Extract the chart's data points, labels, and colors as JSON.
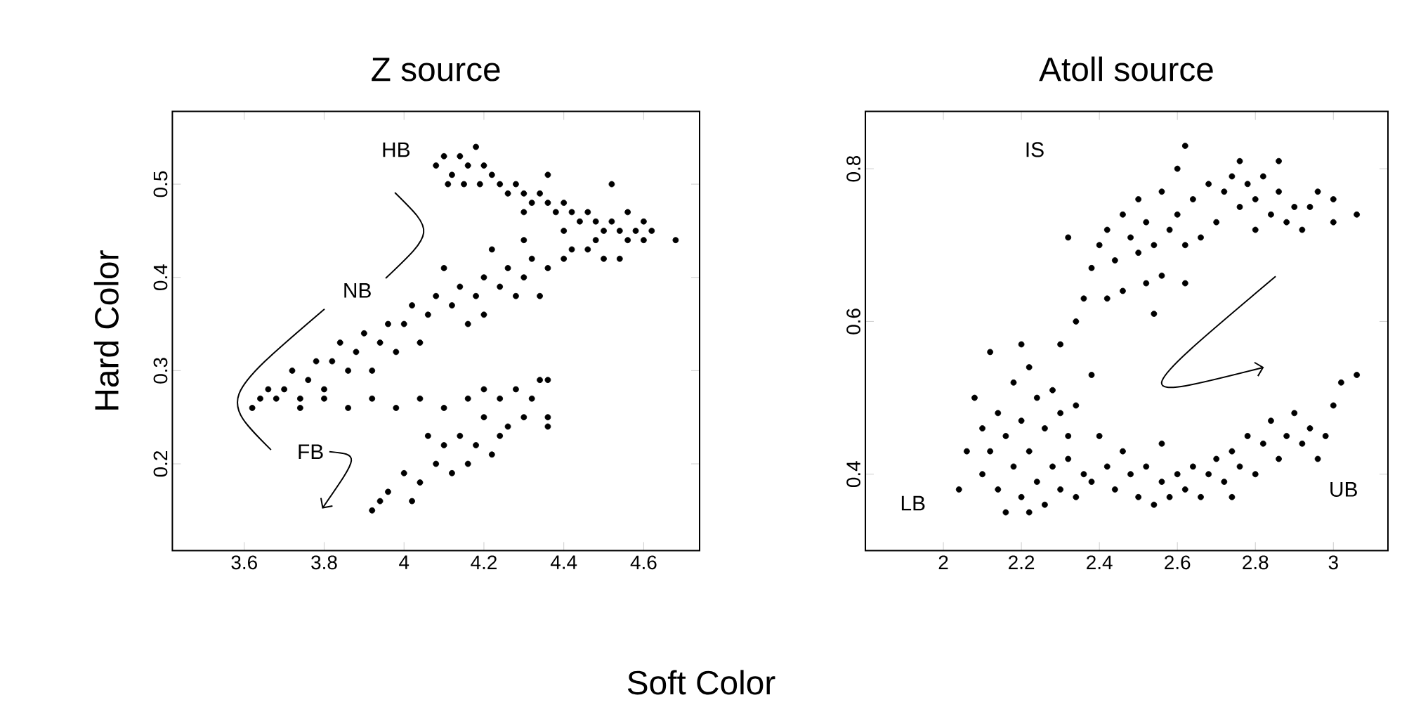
{
  "chart_data": [
    {
      "type": "scatter",
      "title": "Z source",
      "xlabel": "Soft Color",
      "ylabel": "Hard Color",
      "marker": "circle",
      "xlim": [
        3.42,
        4.74
      ],
      "ylim": [
        0.107,
        0.578
      ],
      "xticks": [
        3.6,
        3.8,
        4,
        4.2,
        4.4,
        4.6
      ],
      "yticks": [
        0.2,
        0.3,
        0.4,
        0.5
      ],
      "annotations": [
        "HB",
        "NB",
        "FB"
      ],
      "series": [
        {
          "color": "#000000",
          "x": [
            4.08,
            4.1,
            4.12,
            4.14,
            4.16,
            4.18,
            4.2,
            4.22,
            4.11,
            4.15,
            4.19,
            4.24,
            4.26,
            4.28,
            4.3,
            4.32,
            4.34,
            4.36,
            4.38,
            4.4,
            4.42,
            4.44,
            4.46,
            4.48,
            4.5,
            4.52,
            4.54,
            4.56,
            4.58,
            4.6,
            4.62,
            4.68,
            4.52,
            4.36,
            4.3,
            4.4,
            4.46,
            4.5,
            4.54,
            4.42,
            4.48,
            4.56,
            4.6,
            4.4,
            4.36,
            4.32,
            4.3,
            4.26,
            4.24,
            4.2,
            4.18,
            4.14,
            4.12,
            4.08,
            4.06,
            4.02,
            4.0,
            3.96,
            3.94,
            3.9,
            3.88,
            3.84,
            3.82,
            3.78,
            3.76,
            3.72,
            3.7,
            3.66,
            3.64,
            3.62,
            4.3,
            4.22,
            4.1,
            4.34,
            4.2,
            3.98,
            3.86,
            3.74,
            3.8,
            3.92,
            4.04,
            4.16,
            4.28,
            3.68,
            3.74,
            3.8,
            3.86,
            3.92,
            3.98,
            4.04,
            4.1,
            4.16,
            4.2,
            4.24,
            4.28,
            4.32,
            4.34,
            4.36,
            4.2,
            4.26,
            4.3,
            4.36,
            4.36,
            4.06,
            4.1,
            4.14,
            4.18,
            4.22,
            4.08,
            4.12,
            4.0,
            3.96,
            4.02,
            4.04,
            3.92,
            3.94,
            4.16,
            4.24
          ],
          "values": [
            0.52,
            0.53,
            0.51,
            0.53,
            0.52,
            0.54,
            0.52,
            0.51,
            0.5,
            0.5,
            0.5,
            0.5,
            0.49,
            0.5,
            0.49,
            0.48,
            0.49,
            0.48,
            0.47,
            0.48,
            0.47,
            0.46,
            0.47,
            0.46,
            0.45,
            0.46,
            0.45,
            0.44,
            0.45,
            0.44,
            0.45,
            0.44,
            0.5,
            0.51,
            0.47,
            0.45,
            0.43,
            0.42,
            0.42,
            0.43,
            0.44,
            0.47,
            0.46,
            0.42,
            0.41,
            0.42,
            0.4,
            0.41,
            0.39,
            0.4,
            0.38,
            0.39,
            0.37,
            0.38,
            0.36,
            0.37,
            0.35,
            0.35,
            0.33,
            0.34,
            0.32,
            0.33,
            0.31,
            0.31,
            0.29,
            0.3,
            0.28,
            0.28,
            0.27,
            0.26,
            0.44,
            0.43,
            0.41,
            0.38,
            0.36,
            0.32,
            0.3,
            0.27,
            0.28,
            0.3,
            0.33,
            0.35,
            0.38,
            0.27,
            0.26,
            0.27,
            0.26,
            0.27,
            0.26,
            0.27,
            0.26,
            0.27,
            0.28,
            0.27,
            0.28,
            0.27,
            0.29,
            0.29,
            0.25,
            0.24,
            0.25,
            0.24,
            0.25,
            0.23,
            0.22,
            0.23,
            0.22,
            0.21,
            0.2,
            0.19,
            0.19,
            0.17,
            0.16,
            0.18,
            0.15,
            0.16,
            0.2,
            0.23
          ]
        }
      ]
    },
    {
      "type": "scatter",
      "title": "Atoll source",
      "marker": "circle",
      "xlim": [
        1.8,
        3.14
      ],
      "ylim": [
        0.3,
        0.875
      ],
      "xticks": [
        2,
        2.2,
        2.4,
        2.6,
        2.8,
        3
      ],
      "yticks": [
        0.4,
        0.6,
        0.8
      ],
      "annotations": [
        "IS",
        "LB",
        "UB"
      ],
      "series": [
        {
          "color": "#000000",
          "x": [
            2.38,
            2.4,
            2.42,
            2.44,
            2.46,
            2.48,
            2.5,
            2.52,
            2.54,
            2.56,
            2.58,
            2.6,
            2.62,
            2.46,
            2.52,
            2.36,
            2.42,
            2.5,
            2.56,
            2.64,
            2.68,
            2.72,
            2.74,
            2.76,
            2.78,
            2.8,
            2.82,
            2.84,
            2.86,
            2.88,
            2.9,
            2.92,
            2.94,
            2.96,
            3.0,
            3.06,
            2.7,
            2.76,
            2.8,
            2.66,
            2.6,
            2.32,
            2.34,
            2.54,
            2.62,
            2.86,
            3.0,
            2.62,
            2.08,
            2.1,
            2.12,
            2.14,
            2.16,
            2.18,
            2.2,
            2.22,
            2.24,
            2.26,
            2.28,
            2.3,
            2.32,
            2.34,
            2.1,
            2.14,
            2.18,
            2.2,
            2.22,
            2.24,
            2.26,
            2.28,
            2.3,
            2.32,
            2.34,
            2.36,
            2.16,
            2.22,
            2.06,
            2.04,
            2.12,
            2.2,
            2.3,
            2.38,
            2.4,
            2.38,
            2.42,
            2.44,
            2.48,
            2.5,
            2.52,
            2.56,
            2.58,
            2.6,
            2.62,
            2.64,
            2.66,
            2.68,
            2.7,
            2.72,
            2.74,
            2.76,
            2.78,
            2.8,
            2.82,
            2.84,
            2.86,
            2.88,
            2.9,
            2.92,
            2.94,
            2.96,
            2.98,
            3.0,
            3.02,
            3.06,
            2.74,
            2.54,
            2.46,
            2.56
          ],
          "values": [
            0.67,
            0.7,
            0.72,
            0.68,
            0.74,
            0.71,
            0.69,
            0.73,
            0.7,
            0.66,
            0.72,
            0.74,
            0.7,
            0.64,
            0.65,
            0.63,
            0.63,
            0.76,
            0.77,
            0.76,
            0.78,
            0.77,
            0.79,
            0.75,
            0.78,
            0.76,
            0.79,
            0.74,
            0.77,
            0.73,
            0.75,
            0.72,
            0.75,
            0.77,
            0.73,
            0.74,
            0.73,
            0.81,
            0.72,
            0.71,
            0.8,
            0.71,
            0.6,
            0.61,
            0.65,
            0.81,
            0.76,
            0.83,
            0.5,
            0.46,
            0.43,
            0.48,
            0.45,
            0.52,
            0.47,
            0.54,
            0.5,
            0.46,
            0.51,
            0.48,
            0.45,
            0.49,
            0.4,
            0.38,
            0.41,
            0.37,
            0.43,
            0.39,
            0.36,
            0.41,
            0.38,
            0.42,
            0.37,
            0.4,
            0.35,
            0.35,
            0.43,
            0.38,
            0.56,
            0.57,
            0.57,
            0.53,
            0.45,
            0.39,
            0.41,
            0.38,
            0.4,
            0.37,
            0.41,
            0.39,
            0.37,
            0.4,
            0.38,
            0.41,
            0.37,
            0.4,
            0.42,
            0.39,
            0.43,
            0.41,
            0.45,
            0.4,
            0.44,
            0.47,
            0.42,
            0.45,
            0.48,
            0.44,
            0.46,
            0.42,
            0.45,
            0.49,
            0.52,
            0.53,
            0.37,
            0.36,
            0.43,
            0.44
          ]
        }
      ]
    }
  ]
}
